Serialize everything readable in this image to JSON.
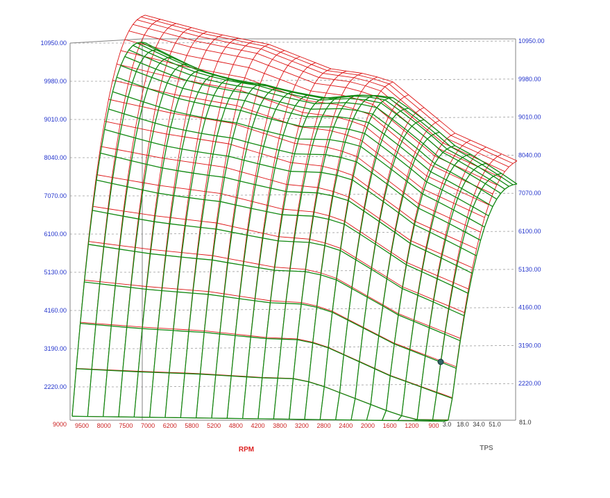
{
  "chart_data": {
    "type": "surface",
    "y_ticks": [
      "10950.00",
      "9980.00",
      "9010.00",
      "8040.00",
      "7070.00",
      "6100.00",
      "5130.00",
      "4160.00",
      "3190.00",
      "2220.00"
    ],
    "y_bottom_left": "9000",
    "y_bottom_right": "81.0",
    "ylim": [
      1250,
      10950
    ],
    "rpm_ticks": [
      "9500",
      "8000",
      "7500",
      "7000",
      "6200",
      "5800",
      "5200",
      "4800",
      "4200",
      "3800",
      "3200",
      "2800",
      "2400",
      "2000",
      "1600",
      "1200",
      "900"
    ],
    "tps_ticks": [
      "3.0",
      "18.0",
      "34.0",
      "51.0"
    ],
    "xlabel": "RPM",
    "tlabel": "TPS",
    "series": [
      {
        "color": "#dd1111"
      },
      {
        "color": "#118811"
      }
    ],
    "surface_ridge": [
      10900,
      10500,
      10200,
      9600,
      9400,
      8400,
      8000
    ],
    "colors": {
      "y_label": "#2233cc",
      "rpm_label": "#cc2222",
      "grid": "#9a9a9a"
    }
  }
}
